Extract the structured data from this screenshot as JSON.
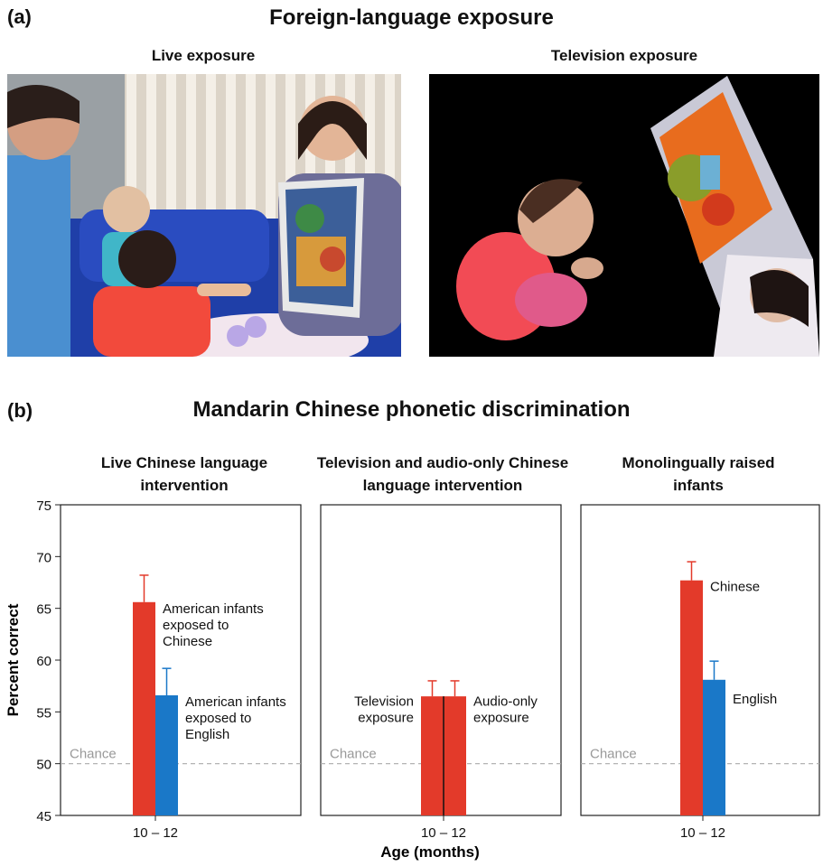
{
  "figure": {
    "panel_a_letter": "(a)",
    "panel_a_title": "Foreign-language exposure",
    "photo_live_title": "Live exposure",
    "photo_tv_title": "Television exposure",
    "panel_b_letter": "(b)",
    "panel_b_title": "Mandarin Chinese phonetic discrimination",
    "y_axis_label": "Percent correct",
    "x_axis_label": "Age (months)",
    "chance_label": "Chance"
  },
  "colors": {
    "red": "#e33a2a",
    "blue": "#1a78c8",
    "chance_line": "#aaaaaa",
    "tv_background": "#000000"
  },
  "chart_data": [
    {
      "type": "bar",
      "title": "Live Chinese language intervention",
      "categories": [
        "10 – 12"
      ],
      "ylim": [
        45,
        75
      ],
      "yticks": [
        45,
        50,
        55,
        60,
        65,
        70,
        75
      ],
      "chance": 50,
      "series": [
        {
          "name": "American infants exposed to Chinese",
          "values": [
            65.6
          ],
          "error": [
            2.6
          ],
          "color": "#e33a2a"
        },
        {
          "name": "American infants exposed to English",
          "values": [
            56.6
          ],
          "error": [
            2.6
          ],
          "color": "#1a78c8"
        }
      ]
    },
    {
      "type": "bar",
      "title": "Television and audio-only Chinese language intervention",
      "categories": [
        "10 – 12"
      ],
      "ylim": [
        45,
        75
      ],
      "chance": 50,
      "series": [
        {
          "name": "Television exposure",
          "values": [
            56.5
          ],
          "error": [
            1.5
          ],
          "color": "#e33a2a"
        },
        {
          "name": "Audio-only exposure",
          "values": [
            56.5
          ],
          "error": [
            1.5
          ],
          "color": "#e33a2a"
        }
      ]
    },
    {
      "type": "bar",
      "title": "Monolingually raised infants",
      "categories": [
        "10 – 12"
      ],
      "ylim": [
        45,
        75
      ],
      "chance": 50,
      "series": [
        {
          "name": "Chinese",
          "values": [
            67.7
          ],
          "error": [
            1.8
          ],
          "color": "#e33a2a"
        },
        {
          "name": "English",
          "values": [
            58.1
          ],
          "error": [
            1.8
          ],
          "color": "#1a78c8"
        }
      ]
    }
  ]
}
